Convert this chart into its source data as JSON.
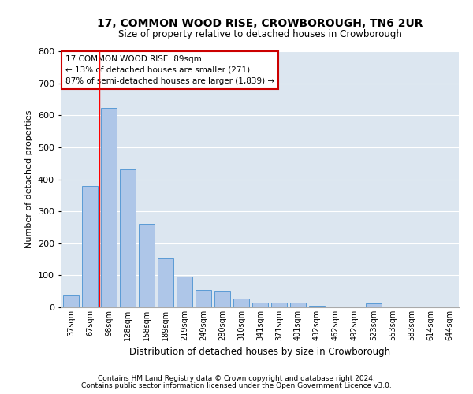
{
  "title": "17, COMMON WOOD RISE, CROWBOROUGH, TN6 2UR",
  "subtitle": "Size of property relative to detached houses in Crowborough",
  "xlabel": "Distribution of detached houses by size in Crowborough",
  "ylabel": "Number of detached properties",
  "footnote1": "Contains HM Land Registry data © Crown copyright and database right 2024.",
  "footnote2": "Contains public sector information licensed under the Open Government Licence v3.0.",
  "annotation_line1": "17 COMMON WOOD RISE: 89sqm",
  "annotation_line2": "← 13% of detached houses are smaller (271)",
  "annotation_line3": "87% of semi-detached houses are larger (1,839) →",
  "categories": [
    "37sqm",
    "67sqm",
    "98sqm",
    "128sqm",
    "158sqm",
    "189sqm",
    "219sqm",
    "249sqm",
    "280sqm",
    "310sqm",
    "341sqm",
    "371sqm",
    "401sqm",
    "432sqm",
    "462sqm",
    "492sqm",
    "523sqm",
    "553sqm",
    "583sqm",
    "614sqm",
    "644sqm"
  ],
  "values": [
    40,
    378,
    622,
    432,
    262,
    152,
    96,
    55,
    52,
    28,
    16,
    16,
    16,
    5,
    0,
    0,
    13,
    0,
    0,
    0,
    0
  ],
  "bar_color": "#aec6e8",
  "bar_edge_color": "#5a9bd5",
  "annotation_box_color": "#ffffff",
  "annotation_box_edge": "#cc0000",
  "background_color": "#dce6f0",
  "ylim": [
    0,
    800
  ],
  "yticks": [
    0,
    100,
    200,
    300,
    400,
    500,
    600,
    700,
    800
  ],
  "red_line_x": 1.5
}
